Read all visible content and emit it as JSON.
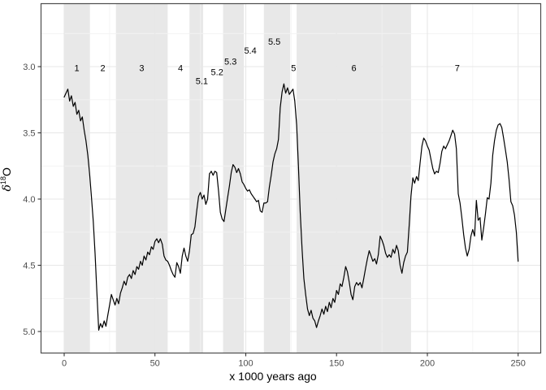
{
  "chart_data": {
    "type": "line",
    "title": "",
    "xlabel": "x 1000 years ago",
    "ylabel": {
      "delta": "δ",
      "exponent": "18",
      "base": "O"
    },
    "x_ticks": [
      {
        "label": "0",
        "value": 0
      },
      {
        "label": "50",
        "value": 50
      },
      {
        "label": "100",
        "value": 100
      },
      {
        "label": "150",
        "value": 150
      },
      {
        "label": "200",
        "value": 200
      },
      {
        "label": "250",
        "value": 250
      }
    ],
    "x_minor_ticks": [
      25,
      75,
      125,
      175,
      225
    ],
    "y_ticks": [
      {
        "label": "3.0",
        "value": 3.0
      },
      {
        "label": "3.5",
        "value": 3.5
      },
      {
        "label": "4.0",
        "value": 4.0
      },
      {
        "label": "4.5",
        "value": 4.5
      },
      {
        "label": "5.0",
        "value": 5.0
      }
    ],
    "y_minor_ticks": [
      2.75,
      3.25,
      3.75,
      4.25,
      4.75
    ],
    "y_axis_reversed": true,
    "x_range": [
      -12.7,
      262.4
    ],
    "y_range": [
      2.53,
      5.16
    ],
    "legend": "none",
    "grid": "on",
    "band_color": "#e8e8e8",
    "major_grid_color": "#e7e7e7",
    "minor_grid_color": "#f2f2f2",
    "line_color": "#000000",
    "border_color": "#4d4d4d",
    "tick_label_color": "#4d4d4d",
    "shaded_bands_kyr": [
      [
        0,
        14.2
      ],
      [
        28.5,
        57
      ],
      [
        69,
        76.5
      ],
      [
        87.5,
        99
      ],
      [
        110,
        124.5
      ],
      [
        128,
        191
      ]
    ],
    "stage_labels": [
      {
        "text": "1",
        "kyr": 7.0,
        "d18o": 3.01
      },
      {
        "text": "2",
        "kyr": 21.3,
        "d18o": 3.01
      },
      {
        "text": "3",
        "kyr": 42.7,
        "d18o": 3.01
      },
      {
        "text": "4",
        "kyr": 64.0,
        "d18o": 3.01
      },
      {
        "text": "5.1",
        "kyr": 75.8,
        "d18o": 3.11
      },
      {
        "text": "5.2",
        "kyr": 84.2,
        "d18o": 3.04
      },
      {
        "text": "5.3",
        "kyr": 91.6,
        "d18o": 2.96
      },
      {
        "text": "5.4",
        "kyr": 102.5,
        "d18o": 2.88
      },
      {
        "text": "5.5",
        "kyr": 115.7,
        "d18o": 2.81
      },
      {
        "text": "5",
        "kyr": 126.3,
        "d18o": 3.01
      },
      {
        "text": "6",
        "kyr": 159.5,
        "d18o": 3.01
      },
      {
        "text": "7",
        "kyr": 216.5,
        "d18o": 3.01
      }
    ],
    "series": {
      "name": "d18O",
      "x_start": 0,
      "x_step": 1,
      "values": [
        3.23,
        3.2,
        3.17,
        3.26,
        3.22,
        3.3,
        3.27,
        3.36,
        3.33,
        3.41,
        3.38,
        3.48,
        3.56,
        3.67,
        3.81,
        3.98,
        4.17,
        4.41,
        4.7,
        4.99,
        4.94,
        4.97,
        4.92,
        4.96,
        4.88,
        4.8,
        4.72,
        4.76,
        4.8,
        4.75,
        4.79,
        4.71,
        4.67,
        4.62,
        4.65,
        4.59,
        4.57,
        4.6,
        4.54,
        4.57,
        4.51,
        4.53,
        4.47,
        4.5,
        4.43,
        4.46,
        4.4,
        4.42,
        4.36,
        4.38,
        4.32,
        4.3,
        4.33,
        4.3,
        4.34,
        4.43,
        4.46,
        4.47,
        4.5,
        4.54,
        4.57,
        4.59,
        4.48,
        4.51,
        4.56,
        4.43,
        4.37,
        4.43,
        4.47,
        4.39,
        4.27,
        4.26,
        4.21,
        4.09,
        3.98,
        3.95,
        4.0,
        3.97,
        4.04,
        4.0,
        3.81,
        3.79,
        3.82,
        3.79,
        3.8,
        3.94,
        4.1,
        4.15,
        4.17,
        4.08,
        3.99,
        3.9,
        3.8,
        3.74,
        3.76,
        3.8,
        3.77,
        3.81,
        3.87,
        3.89,
        3.92,
        3.94,
        3.93,
        3.96,
        3.98,
        4.0,
        4.02,
        4.01,
        4.09,
        4.1,
        4.03,
        4.03,
        4.02,
        3.91,
        3.82,
        3.72,
        3.66,
        3.62,
        3.55,
        3.31,
        3.19,
        3.13,
        3.2,
        3.16,
        3.21,
        3.19,
        3.17,
        3.26,
        3.44,
        3.75,
        4.1,
        4.38,
        4.6,
        4.72,
        4.83,
        4.88,
        4.84,
        4.9,
        4.92,
        4.97,
        4.92,
        4.88,
        4.83,
        4.87,
        4.81,
        4.85,
        4.78,
        4.82,
        4.75,
        4.78,
        4.69,
        4.72,
        4.64,
        4.66,
        4.59,
        4.51,
        4.55,
        4.63,
        4.72,
        4.76,
        4.66,
        4.63,
        4.65,
        4.63,
        4.67,
        4.6,
        4.52,
        4.45,
        4.39,
        4.43,
        4.47,
        4.45,
        4.49,
        4.42,
        4.28,
        4.31,
        4.35,
        4.41,
        4.44,
        4.42,
        4.44,
        4.38,
        4.41,
        4.35,
        4.39,
        4.5,
        4.56,
        4.48,
        4.43,
        4.4,
        4.2,
        3.98,
        3.84,
        3.88,
        3.83,
        3.86,
        3.73,
        3.6,
        3.54,
        3.56,
        3.6,
        3.63,
        3.7,
        3.77,
        3.81,
        3.79,
        3.8,
        3.73,
        3.64,
        3.6,
        3.62,
        3.59,
        3.56,
        3.52,
        3.48,
        3.51,
        3.62,
        3.96,
        4.03,
        4.14,
        4.27,
        4.37,
        4.43,
        4.38,
        4.28,
        4.23,
        4.28,
        4.01,
        4.16,
        4.14,
        4.31,
        4.22,
        4.11,
        3.99,
        4.0,
        3.88,
        3.67,
        3.56,
        3.48,
        3.44,
        3.43,
        3.46,
        3.54,
        3.63,
        3.72,
        3.85,
        4.02,
        4.05,
        4.12,
        4.25,
        4.47
      ]
    }
  }
}
